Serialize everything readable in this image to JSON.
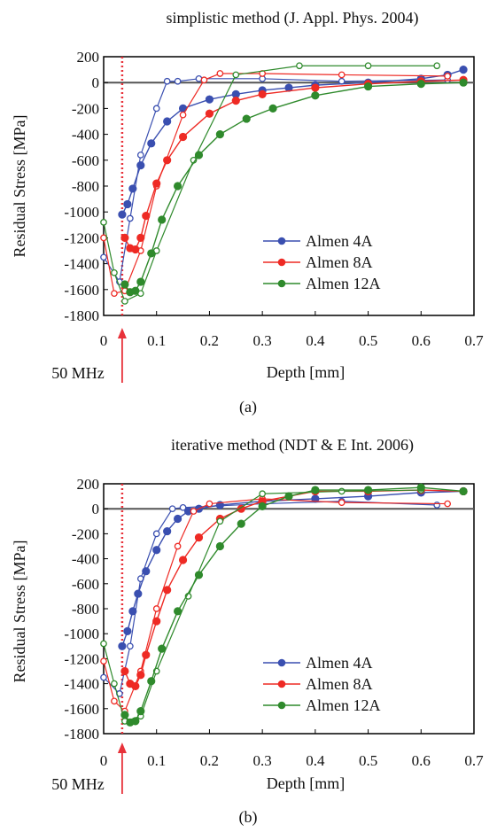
{
  "colors": {
    "almen4a": "#3a4fb0",
    "almen8a": "#ee2a24",
    "almen12a": "#2f8a2c",
    "marker": "#e8323a",
    "zero_line": "#555555"
  },
  "marker_label": "50 MHz",
  "chart_data": [
    {
      "type": "line",
      "panel_label": "(a)",
      "title": "simplistic method (J. Appl. Phys. 2004)",
      "xlabel": "Depth [mm]",
      "ylabel": "Residual Stress [MPa]",
      "xlim": [
        0,
        0.7
      ],
      "ylim": [
        -1800,
        200
      ],
      "xticks": [
        "0",
        "0.1",
        "0.2",
        "0.3",
        "0.4",
        "0.5",
        "0.6",
        "0.7"
      ],
      "yticks": [
        "200",
        "0",
        "-200",
        "-400",
        "-600",
        "-800",
        "-1000",
        "-1200",
        "-1400",
        "-1600",
        "-1800"
      ],
      "marker_x": 0.035,
      "legend": {
        "position": "lower-right",
        "entries": [
          "Almen 4A",
          "Almen 8A",
          "Almen 12A"
        ]
      },
      "series": [
        {
          "name": "Almen 4A",
          "color_key": "almen4a",
          "filled": {
            "x": [
              0.035,
              0.045,
              0.055,
              0.07,
              0.09,
              0.12,
              0.15,
              0.2,
              0.25,
              0.3,
              0.35,
              0.4,
              0.5,
              0.6,
              0.65,
              0.68
            ],
            "y": [
              -1020,
              -940,
              -820,
              -640,
              -470,
              -300,
              -200,
              -130,
              -90,
              -60,
              -40,
              -20,
              0,
              30,
              60,
              100
            ]
          },
          "open": {
            "x": [
              0,
              0.03,
              0.05,
              0.07,
              0.1,
              0.12,
              0.14,
              0.18,
              0.3,
              0.45,
              0.65
            ],
            "y": [
              -1350,
              -1540,
              -1050,
              -560,
              -200,
              10,
              10,
              30,
              30,
              10,
              20
            ]
          }
        },
        {
          "name": "Almen 8A",
          "color_key": "almen8a",
          "filled": {
            "x": [
              0.04,
              0.05,
              0.06,
              0.07,
              0.08,
              0.1,
              0.12,
              0.15,
              0.2,
              0.25,
              0.3,
              0.4,
              0.5,
              0.6,
              0.68
            ],
            "y": [
              -1200,
              -1280,
              -1290,
              -1200,
              -1030,
              -780,
              -600,
              -420,
              -240,
              -140,
              -90,
              -40,
              -10,
              10,
              20
            ]
          },
          "open": {
            "x": [
              0,
              0.02,
              0.04,
              0.07,
              0.1,
              0.15,
              0.19,
              0.22,
              0.3,
              0.45,
              0.65
            ],
            "y": [
              -1200,
              -1630,
              -1610,
              -1300,
              -800,
              -250,
              20,
              70,
              70,
              60,
              50
            ]
          }
        },
        {
          "name": "Almen 12A",
          "color_key": "almen12a",
          "filled": {
            "x": [
              0.04,
              0.05,
              0.06,
              0.07,
              0.09,
              0.11,
              0.14,
              0.18,
              0.22,
              0.27,
              0.32,
              0.4,
              0.5,
              0.6,
              0.68
            ],
            "y": [
              -1560,
              -1620,
              -1610,
              -1540,
              -1320,
              -1060,
              -800,
              -560,
              -400,
              -280,
              -200,
              -100,
              -30,
              -10,
              0
            ]
          },
          "open": {
            "x": [
              0,
              0.02,
              0.04,
              0.07,
              0.1,
              0.17,
              0.25,
              0.37,
              0.5,
              0.63
            ],
            "y": [
              -1080,
              -1470,
              -1690,
              -1630,
              -1300,
              -600,
              60,
              130,
              130,
              130
            ]
          }
        }
      ]
    },
    {
      "type": "line",
      "panel_label": "(b)",
      "title": "iterative method (NDT & E Int. 2006)",
      "xlabel": "Depth [mm]",
      "ylabel": "Residual Stress [MPa]",
      "xlim": [
        0,
        0.7
      ],
      "ylim": [
        -1800,
        200
      ],
      "xticks": [
        "0",
        "0.1",
        "0.2",
        "0.3",
        "0.4",
        "0.5",
        "0.6",
        "0.7"
      ],
      "yticks": [
        "200",
        "0",
        "-200",
        "-400",
        "-600",
        "-800",
        "-1000",
        "-1200",
        "-1400",
        "-1600",
        "-1800"
      ],
      "marker_x": 0.035,
      "legend": {
        "position": "lower-right",
        "entries": [
          "Almen 4A",
          "Almen 8A",
          "Almen 12A"
        ]
      },
      "series": [
        {
          "name": "Almen 4A",
          "color_key": "almen4a",
          "filled": {
            "x": [
              0.035,
              0.045,
              0.055,
              0.065,
              0.08,
              0.1,
              0.12,
              0.14,
              0.16,
              0.18,
              0.22,
              0.3,
              0.4,
              0.5,
              0.6,
              0.68
            ],
            "y": [
              -1100,
              -980,
              -820,
              -680,
              -500,
              -330,
              -180,
              -80,
              -20,
              0,
              30,
              60,
              80,
              100,
              130,
              140
            ]
          },
          "open": {
            "x": [
              0,
              0.03,
              0.05,
              0.07,
              0.1,
              0.13,
              0.15,
              0.3,
              0.45,
              0.63
            ],
            "y": [
              -1350,
              -1480,
              -1100,
              -560,
              -200,
              0,
              10,
              40,
              60,
              30
            ]
          }
        },
        {
          "name": "Almen 8A",
          "color_key": "almen8a",
          "filled": {
            "x": [
              0.04,
              0.05,
              0.06,
              0.07,
              0.08,
              0.1,
              0.12,
              0.15,
              0.18,
              0.22,
              0.26,
              0.3,
              0.4,
              0.5,
              0.6,
              0.68
            ],
            "y": [
              -1300,
              -1400,
              -1420,
              -1330,
              -1170,
              -900,
              -650,
              -410,
              -230,
              -80,
              0,
              60,
              140,
              140,
              150,
              140
            ]
          },
          "open": {
            "x": [
              0,
              0.02,
              0.04,
              0.07,
              0.1,
              0.14,
              0.17,
              0.2,
              0.3,
              0.45,
              0.65
            ],
            "y": [
              -1220,
              -1540,
              -1620,
              -1300,
              -800,
              -300,
              -20,
              40,
              80,
              50,
              40
            ]
          }
        },
        {
          "name": "Almen 12A",
          "color_key": "almen12a",
          "filled": {
            "x": [
              0.04,
              0.05,
              0.06,
              0.07,
              0.09,
              0.11,
              0.14,
              0.18,
              0.22,
              0.26,
              0.3,
              0.35,
              0.4,
              0.5,
              0.6,
              0.68
            ],
            "y": [
              -1650,
              -1710,
              -1700,
              -1620,
              -1380,
              -1120,
              -820,
              -530,
              -300,
              -120,
              20,
              100,
              150,
              150,
              170,
              140
            ]
          },
          "open": {
            "x": [
              0,
              0.02,
              0.04,
              0.07,
              0.1,
              0.16,
              0.22,
              0.3,
              0.45,
              0.6
            ],
            "y": [
              -1080,
              -1400,
              -1700,
              -1660,
              -1300,
              -700,
              -100,
              120,
              140,
              150
            ]
          }
        }
      ]
    }
  ]
}
